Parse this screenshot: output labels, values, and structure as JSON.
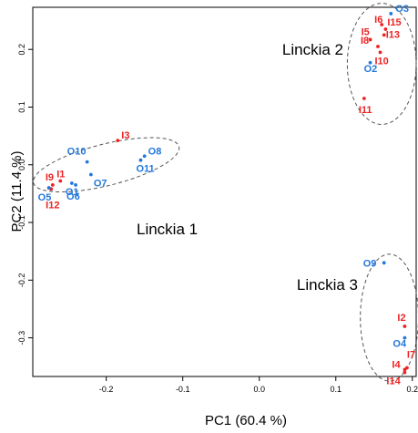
{
  "chart_data": {
    "type": "scatter",
    "title": "",
    "xlabel": "PC1 (60.4 %)",
    "ylabel": "PC2 (11.4 %)",
    "xlim": [
      -0.296,
      0.205
    ],
    "ylim": [
      -0.367,
      0.273
    ],
    "x_ticks": [
      -0.2,
      -0.1,
      0.0,
      0.1,
      0.2
    ],
    "x_tick_labels": [
      "-0.2",
      "-0.1",
      "0.0",
      "0.1",
      "0.2"
    ],
    "y_ticks": [
      -0.3,
      -0.2,
      -0.1,
      0.0,
      0.1,
      0.2
    ],
    "y_tick_labels": [
      "-0.3",
      "-0.2",
      "-0.1",
      "0.0",
      "0.1",
      "0.2"
    ],
    "grid": false,
    "legend": "none",
    "colors": {
      "I": "#ee2222",
      "O": "#2277dd",
      "ellipse": "#555555",
      "axis": "#000000"
    },
    "groups": [
      {
        "name": "Linckia 1",
        "center": [
          -0.2,
          0.0
        ],
        "radii": [
          0.098,
          0.036
        ],
        "angle_deg": -14
      },
      {
        "name": "Linckia 2",
        "center": [
          0.16,
          0.175
        ],
        "radii": [
          0.045,
          0.105
        ],
        "angle_deg": 0
      },
      {
        "name": "Linckia 3",
        "center": [
          0.17,
          -0.265
        ],
        "radii": [
          0.038,
          0.11
        ],
        "angle_deg": 0
      }
    ],
    "points": [
      {
        "label": "I1",
        "series": "I",
        "x": -0.26,
        "y": -0.028
      },
      {
        "label": "I2",
        "series": "I",
        "x": 0.19,
        "y": -0.28
      },
      {
        "label": "I3",
        "series": "I",
        "x": -0.185,
        "y": 0.042
      },
      {
        "label": "I4",
        "series": "I",
        "x": 0.19,
        "y": -0.355
      },
      {
        "label": "I5",
        "series": "I",
        "x": 0.145,
        "y": 0.217
      },
      {
        "label": "I6",
        "series": "I",
        "x": 0.16,
        "y": 0.243
      },
      {
        "label": "I7",
        "series": "I",
        "x": 0.193,
        "y": -0.352
      },
      {
        "label": "I8",
        "series": "I",
        "x": 0.155,
        "y": 0.205
      },
      {
        "label": "I9",
        "series": "I",
        "x": -0.27,
        "y": -0.035
      },
      {
        "label": "I10",
        "series": "I",
        "x": 0.158,
        "y": 0.195
      },
      {
        "label": "I11",
        "series": "I",
        "x": 0.137,
        "y": 0.115
      },
      {
        "label": "I12",
        "series": "I",
        "x": -0.272,
        "y": -0.042
      },
      {
        "label": "I13",
        "series": "I",
        "x": 0.163,
        "y": 0.225
      },
      {
        "label": "I14",
        "series": "I",
        "x": 0.19,
        "y": -0.36
      },
      {
        "label": "I15",
        "series": "I",
        "x": 0.165,
        "y": 0.235
      },
      {
        "label": "O1",
        "series": "O",
        "x": -0.245,
        "y": -0.032
      },
      {
        "label": "O2",
        "series": "O",
        "x": 0.145,
        "y": 0.177
      },
      {
        "label": "O3",
        "series": "O",
        "x": 0.172,
        "y": 0.262
      },
      {
        "label": "O4",
        "series": "O",
        "x": 0.19,
        "y": -0.3
      },
      {
        "label": "O5",
        "series": "O",
        "x": -0.275,
        "y": -0.04
      },
      {
        "label": "O6",
        "series": "O",
        "x": -0.24,
        "y": -0.035
      },
      {
        "label": "O7",
        "series": "O",
        "x": -0.22,
        "y": -0.017
      },
      {
        "label": "O8",
        "series": "O",
        "x": -0.15,
        "y": 0.015
      },
      {
        "label": "O9",
        "series": "O",
        "x": 0.163,
        "y": -0.17
      },
      {
        "label": "O10",
        "series": "O",
        "x": -0.225,
        "y": 0.005
      },
      {
        "label": "O11",
        "series": "O",
        "x": -0.155,
        "y": 0.008
      }
    ]
  }
}
